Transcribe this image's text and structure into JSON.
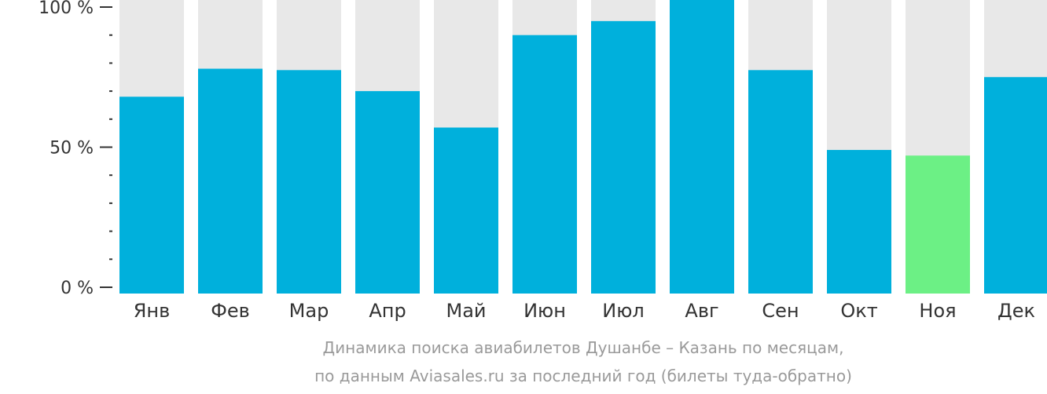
{
  "chart_data": {
    "type": "bar",
    "categories": [
      "Янв",
      "Фев",
      "Мар",
      "Апр",
      "Май",
      "Июн",
      "Июл",
      "Авг",
      "Сен",
      "Окт",
      "Ноя",
      "Дек"
    ],
    "values": [
      68,
      78,
      77.5,
      70,
      57,
      90,
      95,
      104,
      77.5,
      49,
      47,
      75
    ],
    "ylim": [
      0,
      100
    ],
    "y_ticks": [
      {
        "value": 0,
        "label": "0 %"
      },
      {
        "value": 50,
        "label": "50 %"
      },
      {
        "value": 100,
        "label": "100 %"
      }
    ],
    "minor_tick_step": 10,
    "highlight_category": "Ноя",
    "colors": {
      "bar": "#00b0dc",
      "highlight": "#6cf085",
      "background_bar": "#e8e8e8",
      "axis": "#333333",
      "caption": "#9a9a9a"
    },
    "caption_line1": "Динамика поиска авиабилетов Душанбе – Казань по месяцам,",
    "caption_line2": "по данным Aviasales.ru за последний год (билеты туда-обратно)"
  }
}
